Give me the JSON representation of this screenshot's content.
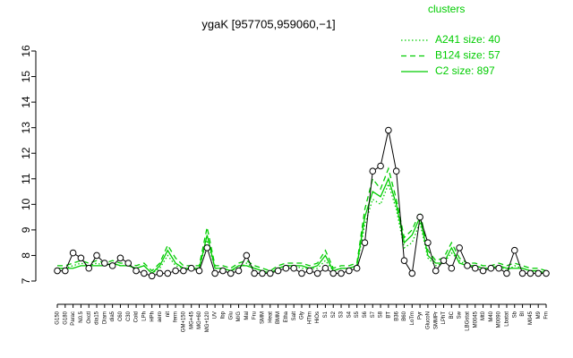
{
  "chart_data": {
    "type": "line",
    "title": "ygaK [957705,959060,−1]",
    "legend_title": "clusters",
    "legend": "top-right",
    "categories": [
      "G150",
      "G180",
      "Parac",
      "N0.5",
      "Oxctl",
      "dia15",
      "Diam",
      "dia5",
      "C60",
      "C30",
      "Cold",
      "LPh",
      "HPh",
      "aero",
      "nit",
      "ferm",
      "GM+150",
      "MG+45",
      "MG+60",
      "MG+120",
      "UV",
      "Ibp",
      "Glu",
      "M/G",
      "Mal",
      "Fru",
      "SMM",
      "Heat",
      "BMM",
      "Etha",
      "Salt",
      "Gly",
      "HTim",
      "HiOs",
      "S1",
      "S2",
      "S3",
      "S4",
      "S5",
      "S6",
      "S7",
      "S8",
      "BT",
      "B36",
      "B60",
      "LoTm",
      "Pyr",
      "GlucoN",
      "SMMPr",
      "LPhT",
      "BC",
      "Sw",
      "LBGstat",
      "M0045",
      "Mt0",
      "M40",
      "M0090",
      "Lbatat",
      "Sb",
      "BI",
      "M045",
      "M9",
      "Fm"
    ],
    "values": [
      7.4,
      7.4,
      8.1,
      7.9,
      7.5,
      8.0,
      7.7,
      7.6,
      7.9,
      7.7,
      7.4,
      7.3,
      7.2,
      7.3,
      7.3,
      7.4,
      7.4,
      7.5,
      7.4,
      8.3,
      7.3,
      7.4,
      7.3,
      7.4,
      8.0,
      7.3,
      7.3,
      7.3,
      7.4,
      7.5,
      7.5,
      7.3,
      7.4,
      7.3,
      7.5,
      7.3,
      7.3,
      7.4,
      7.5,
      8.5,
      11.3,
      11.5,
      12.9,
      11.3,
      7.8,
      7.3,
      9.5,
      8.5,
      7.4,
      7.8,
      7.5,
      8.3,
      7.6,
      7.5,
      7.4,
      7.5,
      7.5,
      7.3,
      8.2,
      7.3,
      7.3,
      7.3,
      7.3
    ],
    "color": "#000000",
    "series": [
      {
        "name": "A241 size: 40",
        "color": "#00cc00",
        "dash": "dotted",
        "values": [
          7.5,
          7.5,
          7.6,
          7.7,
          7.6,
          7.7,
          7.6,
          7.7,
          7.6,
          7.6,
          7.5,
          7.6,
          7.3,
          7.5,
          8.0,
          7.6,
          7.5,
          7.5,
          7.5,
          8.6,
          7.5,
          7.5,
          7.4,
          7.5,
          7.7,
          7.5,
          7.4,
          7.3,
          7.5,
          7.6,
          7.6,
          7.5,
          7.5,
          7.5,
          7.8,
          7.4,
          7.5,
          7.5,
          7.6,
          9.2,
          10.2,
          10.0,
          10.8,
          9.8,
          8.3,
          8.5,
          9.3,
          7.9,
          7.6,
          7.7,
          8.1,
          7.8,
          7.6,
          7.6,
          7.5,
          7.5,
          7.6,
          7.4,
          7.6,
          7.5,
          7.4,
          7.4,
          7.3
        ]
      },
      {
        "name": "B124 size: 57",
        "color": "#00cc00",
        "dash": "dashed",
        "values": [
          7.6,
          7.6,
          7.7,
          7.8,
          7.7,
          7.8,
          7.7,
          7.8,
          7.7,
          7.7,
          7.6,
          7.7,
          7.4,
          7.7,
          8.4,
          7.9,
          7.6,
          7.6,
          7.6,
          9.1,
          7.6,
          7.6,
          7.5,
          7.7,
          7.8,
          7.6,
          7.5,
          7.4,
          7.6,
          7.7,
          7.7,
          7.7,
          7.6,
          7.7,
          8.2,
          7.5,
          7.6,
          7.6,
          7.7,
          9.8,
          11.0,
          10.6,
          11.4,
          10.2,
          8.7,
          9.0,
          9.7,
          8.2,
          7.8,
          7.9,
          8.5,
          7.9,
          7.7,
          7.7,
          7.6,
          7.6,
          7.7,
          7.6,
          7.7,
          7.6,
          7.5,
          7.5,
          7.4
        ]
      },
      {
        "name": "C2 size: 897",
        "color": "#00cc00",
        "dash": "solid",
        "values": [
          7.5,
          7.5,
          7.5,
          7.6,
          7.6,
          7.6,
          7.6,
          7.7,
          7.6,
          7.6,
          7.5,
          7.6,
          7.3,
          7.6,
          8.2,
          7.7,
          7.5,
          7.5,
          7.5,
          8.8,
          7.5,
          7.5,
          7.4,
          7.6,
          7.6,
          7.5,
          7.4,
          7.3,
          7.5,
          7.6,
          7.6,
          7.6,
          7.5,
          7.6,
          8.0,
          7.4,
          7.5,
          7.5,
          7.6,
          9.5,
          10.5,
          10.3,
          11.0,
          10.0,
          8.5,
          8.8,
          9.5,
          8.0,
          7.7,
          7.7,
          8.3,
          7.7,
          7.6,
          7.6,
          7.5,
          7.5,
          7.6,
          7.5,
          7.5,
          7.5,
          7.4,
          7.4,
          7.3
        ]
      }
    ],
    "ylim": [
      7,
      16
    ],
    "yticks": [
      7,
      8,
      9,
      10,
      11,
      12,
      13,
      14,
      15,
      16
    ]
  }
}
